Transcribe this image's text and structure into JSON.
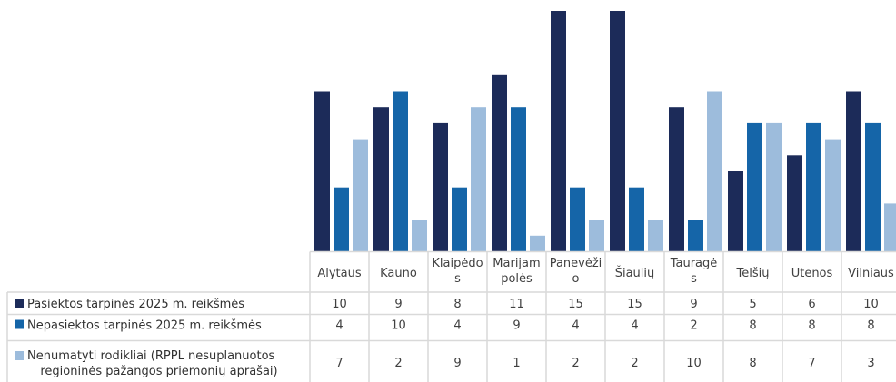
{
  "chart_data": {
    "type": "bar",
    "categories": [
      [
        "Alytaus"
      ],
      [
        "Kauno"
      ],
      [
        "Klaipėdo",
        "s"
      ],
      [
        "Marijam",
        "polės"
      ],
      [
        "Panevėži",
        "o"
      ],
      [
        "Šiaulių"
      ],
      [
        "Tauragė",
        "s"
      ],
      [
        "Telšių"
      ],
      [
        "Utenos"
      ],
      [
        "Vilniaus"
      ]
    ],
    "series": [
      {
        "name": "Pasiektos tarpinės 2025 m. reikšmės",
        "legend_lines": [
          "Pasiektos tarpinės 2025 m. reikšmės"
        ],
        "color": "#1c2b59",
        "values": [
          10,
          9,
          8,
          11,
          15,
          15,
          9,
          5,
          6,
          10
        ]
      },
      {
        "name": "Nepasiektos tarpinės 2025 m.  reikšmės",
        "legend_lines": [
          "Nepasiektos tarpinės 2025 m.  reikšmės"
        ],
        "color": "#1565a8",
        "values": [
          4,
          10,
          4,
          9,
          4,
          4,
          2,
          8,
          8,
          8
        ]
      },
      {
        "name": "Nenumatyti rodikliai (RPPL nesuplanuotos regioninės pažangos priemonių aprašai)",
        "legend_lines": [
          "Nenumatyti rodikliai (RPPL nesuplanuotos",
          "regioninės pažangos priemonių aprašai)"
        ],
        "color": "#9dbcdc",
        "values": [
          7,
          2,
          9,
          1,
          2,
          2,
          10,
          8,
          7,
          3
        ]
      }
    ],
    "ylim": [
      0,
      15
    ],
    "grid": false,
    "legend": "data-table"
  }
}
